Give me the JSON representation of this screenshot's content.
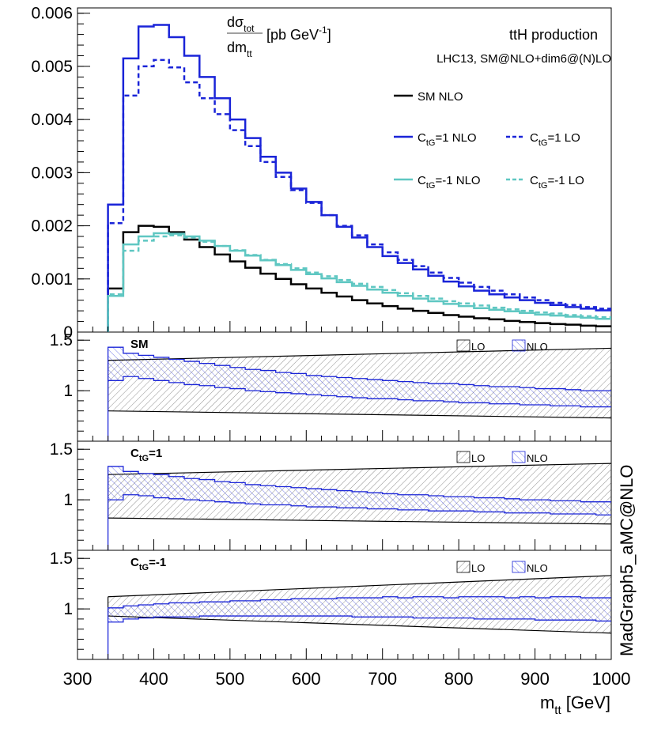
{
  "chart_data": {
    "type": "line",
    "x_bins_gev": [
      340,
      360,
      380,
      400,
      420,
      440,
      460,
      480,
      500,
      520,
      540,
      560,
      580,
      600,
      620,
      640,
      660,
      680,
      700,
      720,
      740,
      760,
      780,
      800,
      820,
      840,
      860,
      880,
      900,
      920,
      940,
      960,
      980,
      1000
    ],
    "top_panel": {
      "ylabel_num": "dσ",
      "ylabel_num_sub": "tot",
      "ylabel_den": "dm",
      "ylabel_den_sub": "tt",
      "ylabel_units": "[pb GeV",
      "ylabel_units_sup": "-1",
      "ylabel_units_end": "]",
      "ylim": [
        0,
        0.0061
      ],
      "yticks": [
        "0",
        "0.001",
        "0.002",
        "0.003",
        "0.004",
        "0.005",
        "0.006"
      ],
      "title": "ttH production",
      "subtitle": "LHC13, SM@NLO+dim6@(N)LO",
      "series": [
        {
          "name": "SM NLO",
          "color": "#000000",
          "dash": false,
          "values": [
            0.00082,
            0.00188,
            0.002,
            0.00198,
            0.00188,
            0.00174,
            0.0016,
            0.00146,
            0.00133,
            0.00121,
            0.0011,
            0.001,
            0.0009,
            0.00082,
            0.00074,
            0.00067,
            0.0006,
            0.00054,
            0.00049,
            0.00044,
            0.0004,
            0.00036,
            0.00032,
            0.00029,
            0.00026,
            0.00024,
            0.00021,
            0.00019,
            0.00017,
            0.00015,
            0.00014,
            0.00012,
            0.00011
          ]
        },
        {
          "name": "CtG=1 NLO",
          "color": "#1a24d8",
          "dash": false,
          "values": [
            0.0024,
            0.00515,
            0.00575,
            0.00578,
            0.00555,
            0.0052,
            0.0048,
            0.0044,
            0.004,
            0.00365,
            0.0033,
            0.003,
            0.0027,
            0.00245,
            0.0022,
            0.00198,
            0.00178,
            0.0016,
            0.00143,
            0.0013,
            0.00118,
            0.00106,
            0.00095,
            0.00086,
            0.00078,
            0.00071,
            0.00065,
            0.0006,
            0.00055,
            0.00051,
            0.00047,
            0.00044,
            0.00041
          ]
        },
        {
          "name": "CtG=1 LO",
          "color": "#1a24d8",
          "dash": true,
          "values": [
            0.00205,
            0.00445,
            0.005,
            0.00512,
            0.00498,
            0.0047,
            0.0044,
            0.0041,
            0.0038,
            0.0035,
            0.0032,
            0.00292,
            0.00267,
            0.00243,
            0.0022,
            0.002,
            0.00182,
            0.00165,
            0.0015,
            0.00136,
            0.00124,
            0.00112,
            0.00102,
            0.00093,
            0.00085,
            0.00078,
            0.00071,
            0.00065,
            0.0006,
            0.00055,
            0.00051,
            0.00047,
            0.00044
          ]
        },
        {
          "name": "CtG=-1 NLO",
          "color": "#5fc7c2",
          "dash": false,
          "values": [
            0.00068,
            0.00165,
            0.0018,
            0.00186,
            0.00185,
            0.0018,
            0.00172,
            0.00162,
            0.00153,
            0.00144,
            0.00135,
            0.00126,
            0.00117,
            0.00109,
            0.00101,
            0.00094,
            0.00087,
            0.0008,
            0.00074,
            0.00068,
            0.00063,
            0.00058,
            0.00053,
            0.00049,
            0.00045,
            0.00042,
            0.00039,
            0.00036,
            0.00033,
            0.00031,
            0.00029,
            0.00027,
            0.00025
          ]
        },
        {
          "name": "CtG=-1 LO",
          "color": "#5fc7c2",
          "dash": true,
          "values": [
            0.00071,
            0.00153,
            0.00172,
            0.0018,
            0.00182,
            0.00178,
            0.0017,
            0.00162,
            0.00154,
            0.00145,
            0.00136,
            0.00128,
            0.0012,
            0.00112,
            0.00105,
            0.00098,
            0.00091,
            0.00085,
            0.00079,
            0.00073,
            0.00068,
            0.00063,
            0.00058,
            0.00054,
            0.0005,
            0.00046,
            0.00043,
            0.0004,
            0.00037,
            0.00035,
            0.00032,
            0.0003,
            0.00028
          ]
        }
      ],
      "legend": [
        {
          "label": "SM NLO"
        },
        {
          "label_pre": "C",
          "label_sub": "tG",
          "label_post": "=1 NLO"
        },
        {
          "label_pre": "C",
          "label_sub": "tG",
          "label_post": "=1 LO"
        },
        {
          "label_pre": "C",
          "label_sub": "tG",
          "label_post": "=-1 NLO"
        },
        {
          "label_pre": "C",
          "label_sub": "tG",
          "label_post": "=-1 LO"
        }
      ]
    },
    "ratio_panels": [
      {
        "label": "SM",
        "label_sub": "",
        "label_post": "",
        "ylim": [
          0.5,
          1.58
        ],
        "yticks": [
          "1.5",
          "1"
        ],
        "lo_band": {
          "upper": [
            1.3,
            1.42
          ],
          "lower": [
            0.8,
            0.73
          ]
        },
        "nlo_band": {
          "upper": [
            1.43,
            1.37,
            1.35,
            1.33,
            1.31,
            1.29,
            1.27,
            1.25,
            1.23,
            1.21,
            1.2,
            1.18,
            1.17,
            1.15,
            1.14,
            1.13,
            1.12,
            1.11,
            1.1,
            1.09,
            1.08,
            1.07,
            1.07,
            1.06,
            1.05,
            1.04,
            1.04,
            1.03,
            1.02,
            1.02,
            1.01,
            1.0,
            1.0
          ],
          "lower": [
            1.1,
            1.14,
            1.12,
            1.1,
            1.08,
            1.06,
            1.05,
            1.03,
            1.02,
            1.0,
            0.99,
            0.98,
            0.97,
            0.96,
            0.95,
            0.94,
            0.93,
            0.92,
            0.92,
            0.91,
            0.9,
            0.9,
            0.89,
            0.88,
            0.88,
            0.87,
            0.87,
            0.86,
            0.86,
            0.85,
            0.85,
            0.84,
            0.84
          ]
        },
        "legend": [
          "LO",
          "NLO"
        ]
      },
      {
        "label": "C",
        "label_sub": "tG",
        "label_post": "=1",
        "ylim": [
          0.5,
          1.58
        ],
        "yticks": [
          "1.5",
          "1"
        ],
        "lo_band": {
          "upper": [
            1.25,
            1.36
          ],
          "lower": [
            0.82,
            0.76
          ]
        },
        "nlo_band": {
          "upper": [
            1.33,
            1.28,
            1.26,
            1.25,
            1.23,
            1.21,
            1.2,
            1.18,
            1.17,
            1.15,
            1.14,
            1.13,
            1.12,
            1.11,
            1.1,
            1.09,
            1.08,
            1.07,
            1.06,
            1.05,
            1.05,
            1.04,
            1.03,
            1.03,
            1.02,
            1.02,
            1.01,
            1.0,
            1.0,
            0.99,
            0.99,
            0.98,
            0.98
          ],
          "lower": [
            1.0,
            1.05,
            1.04,
            1.02,
            1.01,
            1.0,
            0.99,
            0.98,
            0.97,
            0.96,
            0.95,
            0.95,
            0.94,
            0.93,
            0.93,
            0.92,
            0.92,
            0.91,
            0.91,
            0.9,
            0.9,
            0.89,
            0.89,
            0.89,
            0.88,
            0.88,
            0.87,
            0.87,
            0.87,
            0.86,
            0.86,
            0.86,
            0.85
          ]
        },
        "legend": [
          "LO",
          "NLO"
        ]
      },
      {
        "label": "C",
        "label_sub": "tG",
        "label_post": "=-1",
        "ylim": [
          0.5,
          1.58
        ],
        "yticks": [
          "1.5",
          "1"
        ],
        "lo_band": {
          "upper": [
            1.12,
            1.33
          ],
          "lower": [
            0.93,
            0.76
          ]
        },
        "nlo_band": {
          "upper": [
            1.01,
            1.03,
            1.04,
            1.05,
            1.06,
            1.06,
            1.07,
            1.07,
            1.08,
            1.08,
            1.09,
            1.09,
            1.1,
            1.1,
            1.1,
            1.11,
            1.11,
            1.11,
            1.12,
            1.11,
            1.12,
            1.12,
            1.11,
            1.12,
            1.12,
            1.12,
            1.11,
            1.12,
            1.11,
            1.12,
            1.12,
            1.11,
            1.11
          ],
          "lower": [
            0.87,
            0.9,
            0.91,
            0.92,
            0.92,
            0.92,
            0.93,
            0.93,
            0.93,
            0.93,
            0.93,
            0.93,
            0.93,
            0.93,
            0.93,
            0.93,
            0.92,
            0.92,
            0.92,
            0.92,
            0.91,
            0.91,
            0.91,
            0.91,
            0.9,
            0.9,
            0.9,
            0.9,
            0.89,
            0.89,
            0.89,
            0.89,
            0.88
          ]
        },
        "legend": [
          "LO",
          "NLO"
        ]
      }
    ],
    "xlim": [
      300,
      1000
    ],
    "xticks": [
      "300",
      "400",
      "500",
      "600",
      "700",
      "800",
      "900",
      "1000"
    ],
    "xlabel_pre": "m",
    "xlabel_sub": "tt",
    "xlabel_post": " [GeV]",
    "side_label": "MadGraph5_aMC@NLO"
  }
}
